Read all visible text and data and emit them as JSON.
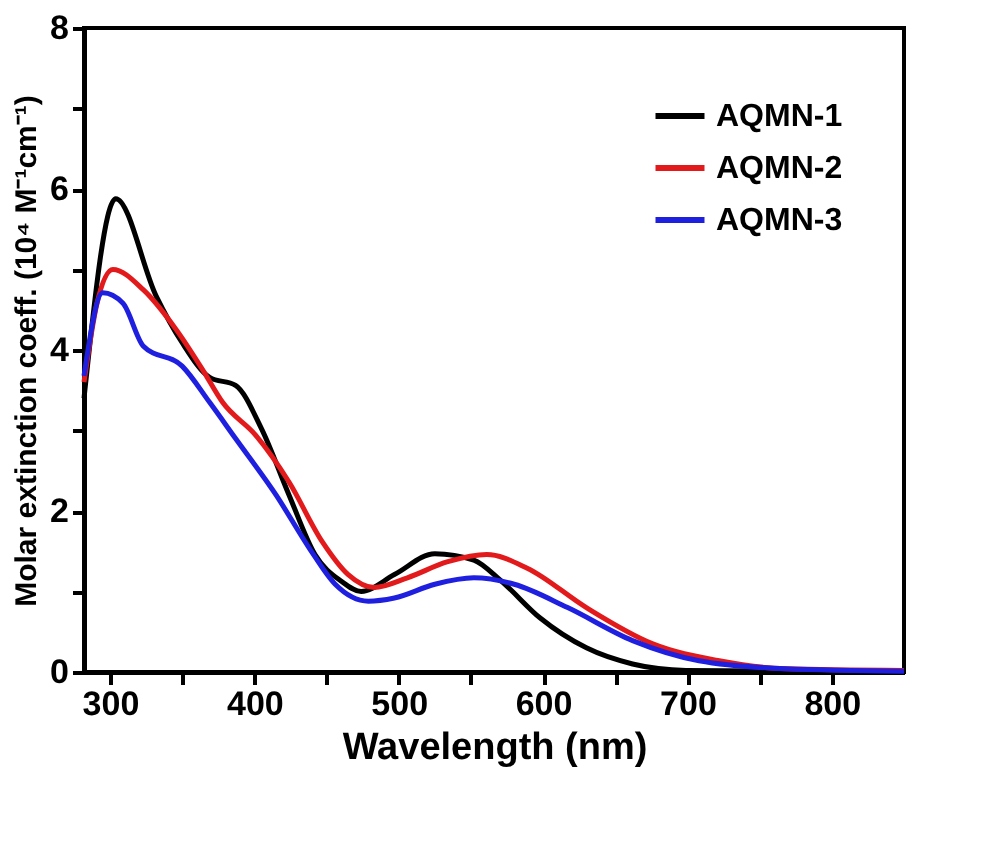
{
  "chart_data": {
    "type": "line",
    "xlabel": "Wavelength (nm)",
    "ylabel": "Molar extinction coeff. (10⁴ M⁻¹cm⁻¹)",
    "xlim": [
      282,
      850
    ],
    "ylim": [
      0,
      8
    ],
    "xticks": [
      300,
      {
        "value": 350,
        "label": null
      },
      400,
      {
        "value": 450,
        "label": null
      },
      500,
      {
        "value": 550,
        "label": null
      },
      600,
      {
        "value": 650,
        "label": null
      },
      700,
      {
        "value": 750,
        "label": null
      },
      800
    ],
    "yticks": [
      0,
      {
        "value": 1,
        "label": null
      },
      2,
      {
        "value": 3,
        "label": null
      },
      4,
      {
        "value": 5,
        "label": null
      },
      6,
      {
        "value": 7,
        "label": null
      },
      8
    ],
    "grid": false,
    "legend": "top right",
    "line_style": "solid",
    "marker": "none",
    "series": [
      {
        "name": "AQMN-1",
        "color": "#000000",
        "x": [
          282,
          304,
          332,
          350,
          369,
          387,
          405,
          424,
          442,
          460,
          474,
          497,
          525,
          552,
          571,
          598,
          630,
          662,
          699,
          850
        ],
        "values": [
          3.4,
          5.88,
          4.67,
          4.09,
          3.66,
          3.56,
          3.02,
          2.2,
          1.46,
          1.13,
          1.0,
          1.21,
          1.47,
          1.39,
          1.13,
          0.67,
          0.3,
          0.1,
          0.02,
          0
        ]
      },
      {
        "name": "AQMN-2",
        "color": "#e31a1c",
        "x": [
          282,
          291,
          302,
          323,
          346,
          364,
          378,
          401,
          424,
          447,
          465,
          483,
          506,
          534,
          561,
          589,
          630,
          676,
          722,
          768,
          850
        ],
        "values": [
          3.6,
          4.58,
          5.0,
          4.75,
          4.25,
          3.76,
          3.35,
          2.94,
          2.36,
          1.62,
          1.21,
          1.05,
          1.17,
          1.37,
          1.46,
          1.29,
          0.8,
          0.35,
          0.14,
          0.04,
          0.02
        ]
      },
      {
        "name": "AQMN-3",
        "color": "#1f1fe0",
        "x": [
          282,
          295,
          309,
          323,
          350,
          369,
          387,
          415,
          438,
          456,
          479,
          497,
          525,
          552,
          580,
          617,
          662,
          708,
          768,
          850
        ],
        "values": [
          3.68,
          4.71,
          4.58,
          4.05,
          3.8,
          3.35,
          2.9,
          2.2,
          1.54,
          1.09,
          0.88,
          0.92,
          1.09,
          1.17,
          1.09,
          0.8,
          0.39,
          0.14,
          0.04,
          0.01
        ]
      }
    ]
  }
}
